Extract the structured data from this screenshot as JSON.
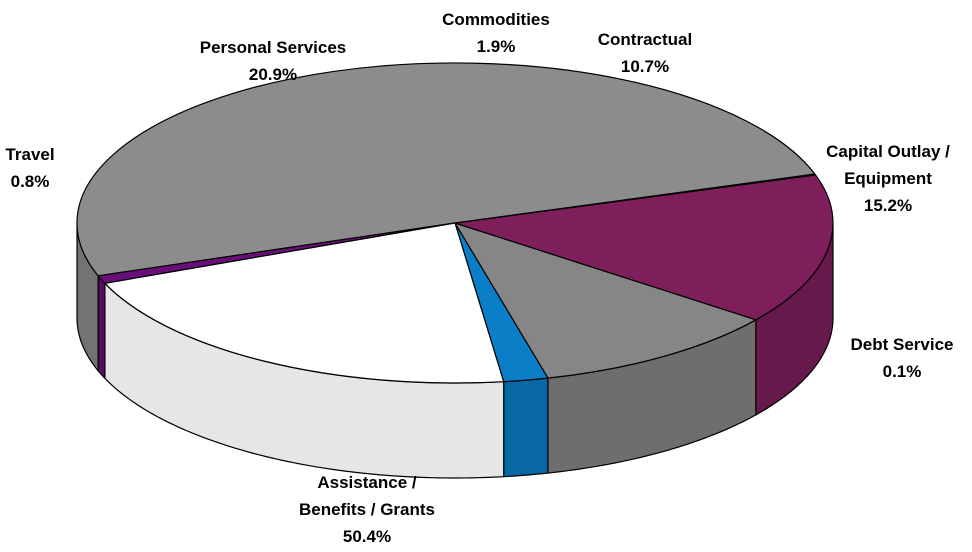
{
  "chart_data": {
    "type": "pie",
    "title": "",
    "slices": [
      {
        "label": [
          "Commodities"
        ],
        "pct_label": "1.9%",
        "value": 1.9,
        "color": "#0a7fc8"
      },
      {
        "label": [
          "Contractual"
        ],
        "pct_label": "10.7%",
        "value": 10.7,
        "color": "#868686"
      },
      {
        "label": [
          "Capital Outlay /",
          "Equipment"
        ],
        "pct_label": "15.2%",
        "value": 15.2,
        "color": "#7e1f5c"
      },
      {
        "label": [
          "Debt Service"
        ],
        "pct_label": "0.1%",
        "value": 0.1,
        "color": "#4a1038"
      },
      {
        "label": [
          "Assistance /",
          "Benefits / Grants"
        ],
        "pct_label": "50.4%",
        "value": 50.4,
        "color": "#8c8c8c"
      },
      {
        "label": [
          "Travel"
        ],
        "pct_label": "0.8%",
        "value": 0.8,
        "color": "#6a0f7a"
      },
      {
        "label": [
          "Personal Services"
        ],
        "pct_label": "20.9%",
        "value": 20.9,
        "color": "#ffffff"
      }
    ]
  }
}
